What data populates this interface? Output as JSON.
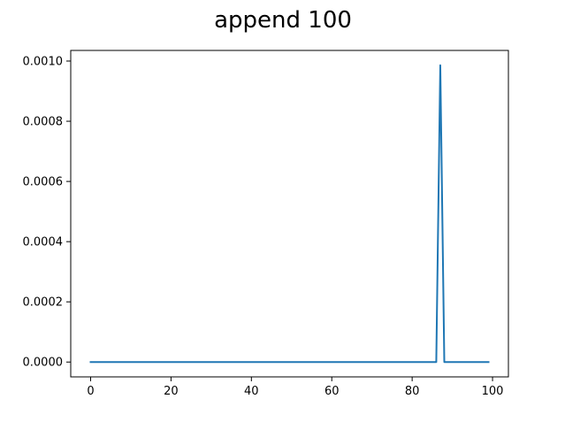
{
  "chart_data": {
    "type": "line",
    "title": "append 100",
    "xlabel": "",
    "ylabel": "",
    "xlim": [
      -4.95,
      103.95
    ],
    "ylim": [
      -4.93e-05,
      0.0010353
    ],
    "x_ticks": [
      0,
      20,
      40,
      60,
      80,
      100
    ],
    "x_tick_labels": [
      "0",
      "20",
      "40",
      "60",
      "80",
      "100"
    ],
    "y_ticks": [
      0.0,
      0.0002,
      0.0004,
      0.0006,
      0.0008,
      0.001
    ],
    "y_tick_labels": [
      "0.0000",
      "0.0002",
      "0.0004",
      "0.0006",
      "0.0008",
      "0.0010"
    ],
    "grid": false,
    "legend": "none",
    "series": [
      {
        "color": "#1f77b4",
        "x": [
          0,
          86,
          87,
          88,
          99
        ],
        "y": [
          0.0,
          0.0,
          0.000986,
          0.0,
          0.0
        ]
      }
    ]
  }
}
